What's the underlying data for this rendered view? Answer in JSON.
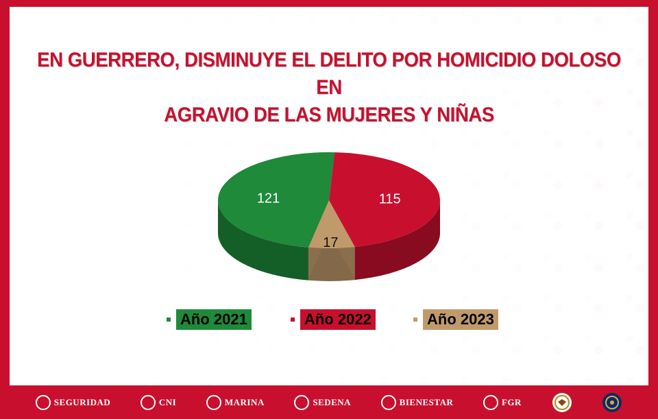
{
  "title_line1": "EN GUERRERO, DISMINUYE EL DELITO POR HOMICIDIO DOLOSO EN",
  "title_line2": "AGRAVIO DE LAS MUJERES Y NIÑAS",
  "chart_data": {
    "type": "pie",
    "title": "EN GUERRERO, DISMINUYE EL DELITO POR HOMICIDIO DOLOSO EN AGRAVIO DE LAS MUJERES Y NIÑAS",
    "categories": [
      "Año 2021",
      "Año 2022",
      "Año 2023"
    ],
    "values": [
      121,
      115,
      17
    ],
    "colors": [
      "#1e8a3a",
      "#c8102e",
      "#c19a6b"
    ],
    "legend": "bottom"
  },
  "footer": {
    "logos": [
      "SEGURIDAD",
      "CNI",
      "MARINA",
      "SEDENA",
      "BIENESTAR",
      "FGR"
    ]
  }
}
